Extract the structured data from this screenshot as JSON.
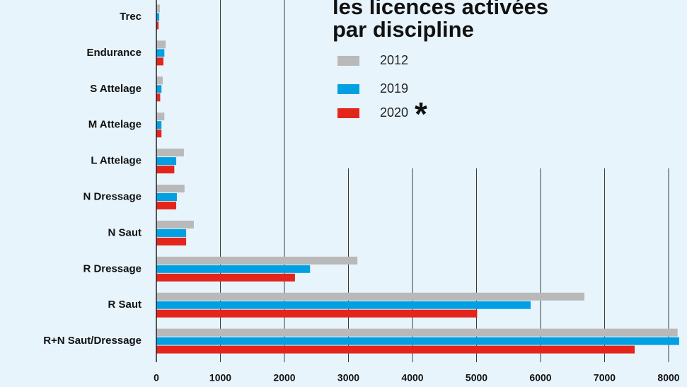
{
  "chart_data": {
    "type": "hbar",
    "title_lines": [
      "les licences activées",
      "par discipline"
    ],
    "legend_note": "*",
    "categories": [
      "Trec",
      "Endurance",
      "S Attelage",
      "M Attelage",
      "L Attelage",
      "N Dressage",
      "N Saut",
      "R Dressage",
      "R Saut",
      "R+N Saut/Dressage"
    ],
    "series": [
      {
        "name": "2012",
        "color": "#b9b9b9",
        "values": [
          55,
          145,
          100,
          125,
          430,
          440,
          585,
          3140,
          6685,
          8140
        ]
      },
      {
        "name": "2019",
        "color": "#00a0e3",
        "values": [
          45,
          125,
          80,
          80,
          310,
          320,
          465,
          2400,
          5845,
          8165
        ]
      },
      {
        "name": "2020",
        "color": "#e4251b",
        "values": [
          35,
          110,
          60,
          80,
          280,
          310,
          465,
          2165,
          5010,
          7470
        ]
      }
    ],
    "xlim": [
      0,
      8290
    ],
    "xticks": [
      0,
      1000,
      2000,
      3000,
      4000,
      5000,
      6000,
      7000,
      8000
    ],
    "grid": true
  }
}
